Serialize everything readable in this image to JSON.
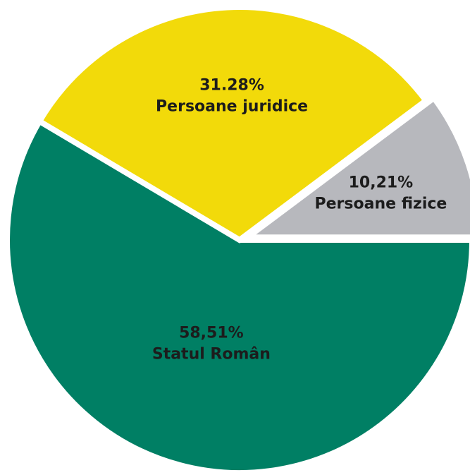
{
  "chart_data": {
    "type": "pie",
    "categories": [
      "Statul Român",
      "Persoane juridice",
      "Persoane fizice"
    ],
    "values": [
      58.51,
      31.28,
      10.21
    ],
    "value_labels": [
      "58,51%",
      "31.28%",
      "10,21%"
    ],
    "colors": [
      "#007f64",
      "#f2da0a",
      "#b7b8bd"
    ]
  }
}
